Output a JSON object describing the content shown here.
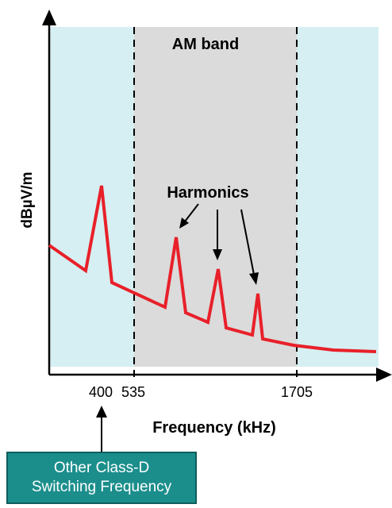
{
  "colors": {
    "outside_band": "#d6eff2",
    "am_band": "#dbdbdb",
    "spectrum": "#e8202a",
    "axis": "#000000",
    "callout_bg": "#1b8e8c",
    "callout_text": "#ffffff"
  },
  "labels": {
    "am_band": "AM band",
    "harmonics": "Harmonics",
    "y_axis": "dBµV/m",
    "x_axis": "Frequency (kHz)",
    "callout_line1": "Other Class-D",
    "callout_line2": "Switching Frequency"
  },
  "chart_data": {
    "type": "line",
    "title": "",
    "xlabel": "Frequency (kHz)",
    "ylabel": "dBµV/m",
    "x_ticks": [
      "400",
      "535",
      "1705"
    ],
    "bands": [
      {
        "name": "AM band",
        "from_khz": 535,
        "to_khz": 1705
      }
    ],
    "switching_frequency_khz": 400,
    "annotations": [
      "Harmonics"
    ]
  }
}
